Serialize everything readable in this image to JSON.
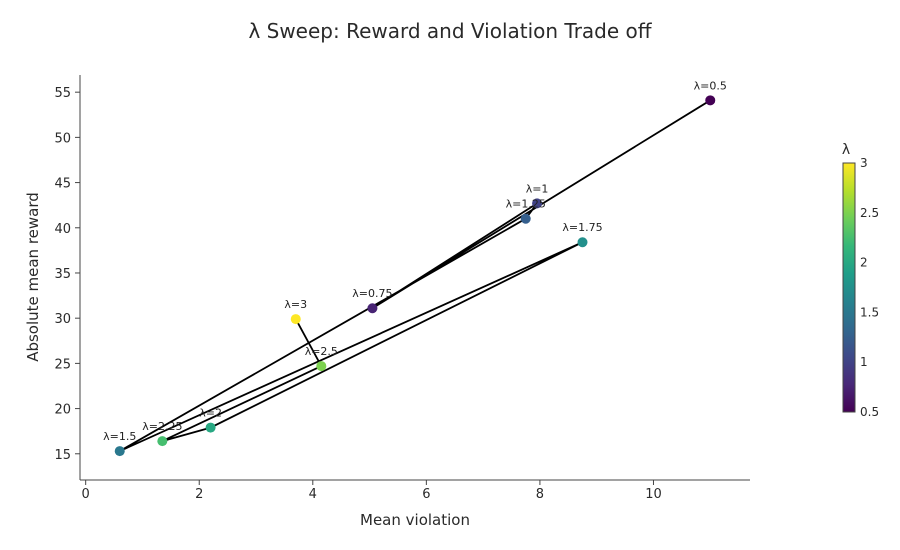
{
  "chart_data": {
    "type": "scatter",
    "mode": "lines+markers+text",
    "title": "λ Sweep: Reward and Violation Trade off",
    "xlabel": "Mean violation",
    "ylabel": "Absolute mean reward",
    "xlim": [
      -0.1,
      11.7
    ],
    "ylim": [
      12.1,
      56.9
    ],
    "xticks": [
      0,
      2,
      4,
      6,
      8,
      10
    ],
    "yticks": [
      15,
      20,
      25,
      30,
      35,
      40,
      45,
      50,
      55
    ],
    "grid": false,
    "points": [
      {
        "label": "λ=0.5",
        "lambda": 0.5,
        "x": 11.0,
        "y": 54.1
      },
      {
        "label": "λ=0.75",
        "lambda": 0.75,
        "x": 5.05,
        "y": 31.1
      },
      {
        "label": "λ=1",
        "lambda": 1.0,
        "x": 7.95,
        "y": 42.7
      },
      {
        "label": "λ=1.25",
        "lambda": 1.25,
        "x": 7.75,
        "y": 41.0
      },
      {
        "label": "λ=1.5",
        "lambda": 1.5,
        "x": 0.6,
        "y": 15.3
      },
      {
        "label": "λ=1.75",
        "lambda": 1.75,
        "x": 8.75,
        "y": 38.4
      },
      {
        "label": "λ=2",
        "lambda": 2.0,
        "x": 2.2,
        "y": 17.9
      },
      {
        "label": "λ=2.25",
        "lambda": 2.25,
        "x": 1.35,
        "y": 16.4
      },
      {
        "label": "λ=2.5",
        "lambda": 2.5,
        "x": 4.15,
        "y": 24.7
      },
      {
        "label": "λ=3",
        "lambda": 3.0,
        "x": 3.7,
        "y": 29.9
      }
    ],
    "colorbar": {
      "title": "λ",
      "range": [
        0.5,
        3
      ],
      "ticks": [
        "0.5",
        "1",
        "1.5",
        "2",
        "2.5",
        "3"
      ],
      "colorscale": [
        "#440154",
        "#482878",
        "#3e4989",
        "#31688e",
        "#26828e",
        "#1f9e89",
        "#35b779",
        "#6ece58",
        "#b5de2b",
        "#fde725"
      ]
    }
  }
}
